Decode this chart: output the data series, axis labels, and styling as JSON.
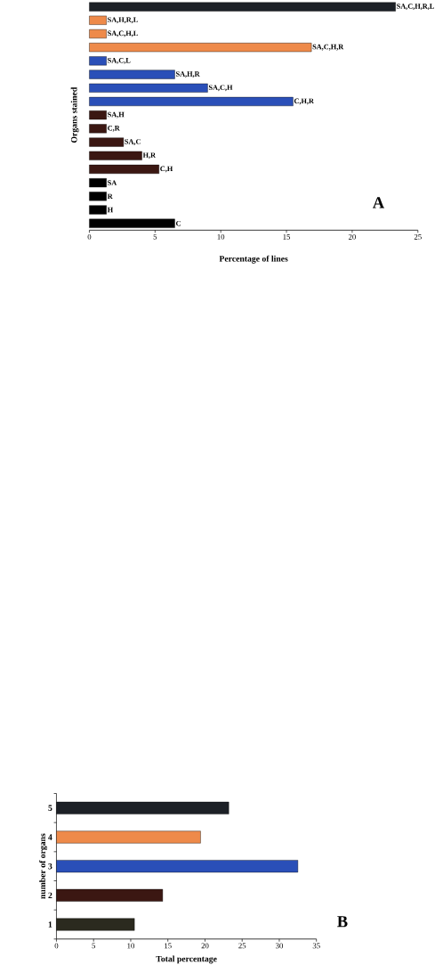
{
  "chart_data": [
    {
      "type": "bar",
      "orientation": "horizontal",
      "categories": [
        "SA,C,H,R,L",
        "SA,H,R,L",
        "SA,C,H,L",
        "SA,C,H,R",
        "SA,C,L",
        "SA,H,R",
        "SA,C,H",
        "C,H,R",
        "SA,H",
        "C,R",
        "SA,C",
        "H,R",
        "C,H",
        "SA",
        "R",
        "H",
        "C"
      ],
      "values": [
        23.3,
        1.3,
        1.3,
        16.9,
        1.3,
        6.5,
        9.0,
        15.5,
        1.3,
        1.3,
        2.6,
        4.0,
        5.3,
        1.3,
        1.3,
        1.3,
        6.5
      ],
      "colors": [
        "#1c2026",
        "#ee8a4a",
        "#ee8a4a",
        "#ee8a4a",
        "#2a4fb8",
        "#2a4fb8",
        "#2a4fb8",
        "#2a4fb8",
        "#3b1712",
        "#3b1712",
        "#3b1712",
        "#3b1712",
        "#3b1712",
        "#000000",
        "#000000",
        "#000000",
        "#000000"
      ],
      "xlabel": "Percentage of lines",
      "ylabel": "Organs stained",
      "xlim": [
        0,
        25
      ],
      "xticks": [
        0,
        5,
        10,
        15,
        20,
        25
      ],
      "tick_labels": "x",
      "annotations": [
        "A"
      ]
    },
    {
      "type": "bar",
      "orientation": "horizontal",
      "categories": [
        "5",
        "4",
        "3",
        "2",
        "1"
      ],
      "values": [
        23.2,
        19.4,
        32.5,
        14.3,
        10.5
      ],
      "colors": [
        "#1c2026",
        "#ee8a4a",
        "#2a4fb8",
        "#3b1712",
        "#2b2a1f"
      ],
      "xlabel": "Total percentage",
      "ylabel": "number of organs",
      "xlim": [
        0,
        35
      ],
      "xticks": [
        0,
        5,
        10,
        15,
        20,
        25,
        30,
        35
      ],
      "annotations": [
        "B"
      ]
    }
  ]
}
